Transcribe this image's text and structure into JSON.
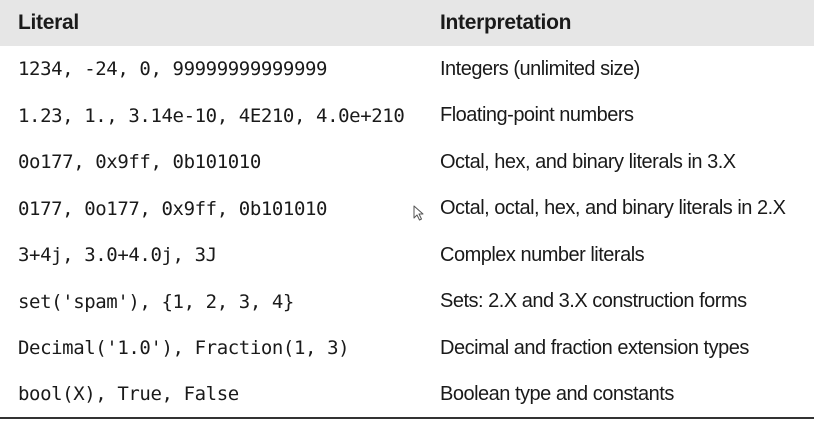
{
  "table": {
    "headers": {
      "literal": "Literal",
      "interpretation": "Interpretation"
    },
    "rows": [
      {
        "literal": "1234, -24, 0, 99999999999999",
        "interpretation": "Integers (unlimited size)"
      },
      {
        "literal": "1.23, 1., 3.14e-10, 4E210, 4.0e+210",
        "interpretation": "Floating-point numbers"
      },
      {
        "literal": "0o177, 0x9ff, 0b101010",
        "interpretation": "Octal, hex, and binary literals in 3.X"
      },
      {
        "literal": "0177, 0o177, 0x9ff, 0b101010",
        "interpretation": "Octal, octal, hex, and binary literals in 2.X"
      },
      {
        "literal": "3+4j, 3.0+4.0j, 3J",
        "interpretation": "Complex number literals"
      },
      {
        "literal": "set('spam'), {1, 2, 3, 4}",
        "interpretation": "Sets: 2.X and 3.X construction forms"
      },
      {
        "literal": "Decimal('1.0'), Fraction(1, 3)",
        "interpretation": "Decimal and fraction extension types"
      },
      {
        "literal": "bool(X), True, False",
        "interpretation": "Boolean type and constants"
      }
    ]
  },
  "cursor": {
    "icon": "mouse-pointer-icon"
  },
  "colors": {
    "header_background": "#e6e6e6",
    "text": "#1a1a1a",
    "bottom_rule": "#333333"
  }
}
